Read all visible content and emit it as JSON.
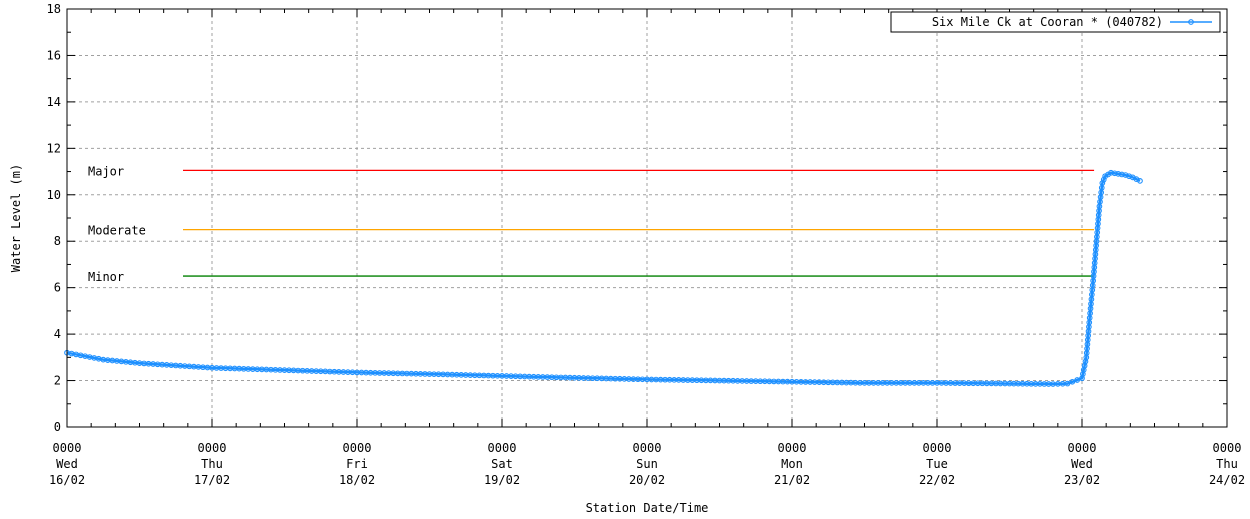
{
  "chart_data": {
    "type": "line",
    "title": "",
    "xlabel": "Station Date/Time",
    "ylabel": "Water Level (m)",
    "ylim": [
      0,
      18
    ],
    "yticks": [
      0,
      2,
      4,
      6,
      8,
      10,
      12,
      14,
      16,
      18
    ],
    "xlim": [
      "2022-02-16 00:00",
      "2022-02-24 00:00"
    ],
    "xticks": [
      {
        "time": "0000",
        "day": "Wed",
        "date": "16/02"
      },
      {
        "time": "0000",
        "day": "Thu",
        "date": "17/02"
      },
      {
        "time": "0000",
        "day": "Fri",
        "date": "18/02"
      },
      {
        "time": "0000",
        "day": "Sat",
        "date": "19/02"
      },
      {
        "time": "0000",
        "day": "Sun",
        "date": "20/02"
      },
      {
        "time": "0000",
        "day": "Mon",
        "date": "21/02"
      },
      {
        "time": "0000",
        "day": "Tue",
        "date": "22/02"
      },
      {
        "time": "0000",
        "day": "Wed",
        "date": "23/02"
      },
      {
        "time": "0000",
        "day": "Thu",
        "date": "24/02"
      }
    ],
    "grid": true,
    "legend_position": "top-right",
    "series": [
      {
        "name": "Six Mile Ck at Cooran * (040782)",
        "color": "#1e90ff",
        "x": [
          "2022-02-16 00:00",
          "2022-02-16 06:00",
          "2022-02-16 12:00",
          "2022-02-16 18:00",
          "2022-02-17 00:00",
          "2022-02-17 12:00",
          "2022-02-18 00:00",
          "2022-02-18 12:00",
          "2022-02-19 00:00",
          "2022-02-19 12:00",
          "2022-02-20 00:00",
          "2022-02-20 12:00",
          "2022-02-21 00:00",
          "2022-02-21 12:00",
          "2022-02-22 00:00",
          "2022-02-22 12:00",
          "2022-02-22 19:12",
          "2022-02-22 21:36",
          "2022-02-23 00:00",
          "2022-02-23 00:43",
          "2022-02-23 01:12",
          "2022-02-23 01:55",
          "2022-02-23 02:24",
          "2022-02-23 02:53",
          "2022-02-23 03:22",
          "2022-02-23 03:50",
          "2022-02-23 04:48",
          "2022-02-23 06:00",
          "2022-02-23 07:12",
          "2022-02-23 08:24",
          "2022-02-23 09:36"
        ],
        "y": [
          3.2,
          2.9,
          2.75,
          2.65,
          2.55,
          2.45,
          2.35,
          2.28,
          2.2,
          2.12,
          2.05,
          2.0,
          1.95,
          1.9,
          1.9,
          1.87,
          1.85,
          1.87,
          2.1,
          3.0,
          4.5,
          6.5,
          8.0,
          9.5,
          10.5,
          10.8,
          10.95,
          10.9,
          10.85,
          10.75,
          10.6
        ]
      }
    ],
    "thresholds": [
      {
        "label": "Major",
        "value": 11.05,
        "color": "#ff0000",
        "x_start": "2022-02-16 19:12",
        "x_end": "2022-02-23 02:00"
      },
      {
        "label": "Moderate",
        "value": 8.5,
        "color": "#ffa500",
        "x_start": "2022-02-16 19:12",
        "x_end": "2022-02-23 02:00"
      },
      {
        "label": "Minor",
        "value": 6.5,
        "color": "#008000",
        "x_start": "2022-02-16 19:12",
        "x_end": "2022-02-23 02:00"
      }
    ]
  }
}
